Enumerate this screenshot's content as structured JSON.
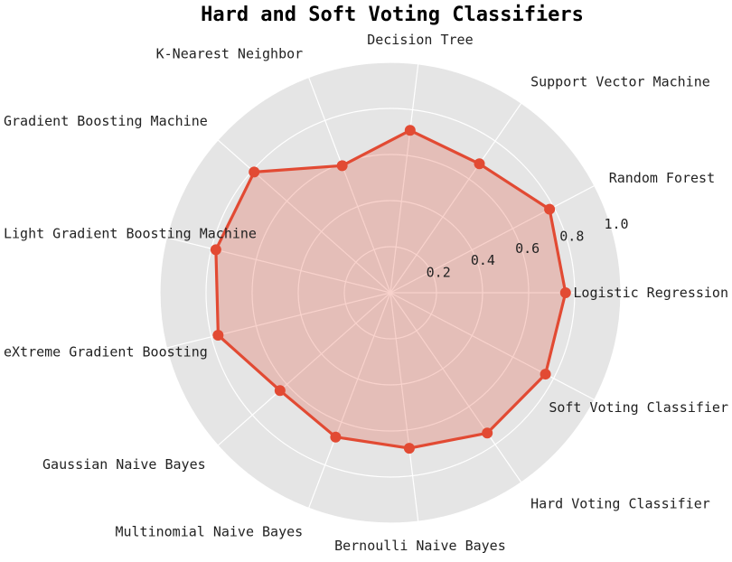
{
  "chart_data": {
    "type": "radar",
    "title": "Hard and Soft Voting Classifiers",
    "categories": [
      "Logistic Regression",
      "Random Forest",
      "Support Vector Machine",
      "Decision Tree",
      "K-Nearest Neighbor",
      "Gradient Boosting Machine",
      "Light Gradient Boosting Machine",
      "eXtreme Gradient Boosting",
      "Gaussian Naive Bayes",
      "Multinomial Naive Bayes",
      "Bernoulli Naive Bayes",
      "Hard Voting Classifier",
      "Soft Voting Classifier"
    ],
    "values": [
      0.76,
      0.78,
      0.68,
      0.71,
      0.59,
      0.79,
      0.78,
      0.77,
      0.64,
      0.67,
      0.68,
      0.74,
      0.76
    ],
    "rlim": [
      0,
      1.0
    ],
    "rticks": [
      "0.2",
      "0.4",
      "0.6",
      "0.8",
      "1.0"
    ],
    "rtick_values": [
      0.2,
      0.4,
      0.6,
      0.8,
      1.0
    ],
    "grid": true,
    "colors": {
      "line": "#e24a33",
      "fill": "#e24a33",
      "background": "#e5e5e5",
      "grid": "#ffffff"
    }
  }
}
